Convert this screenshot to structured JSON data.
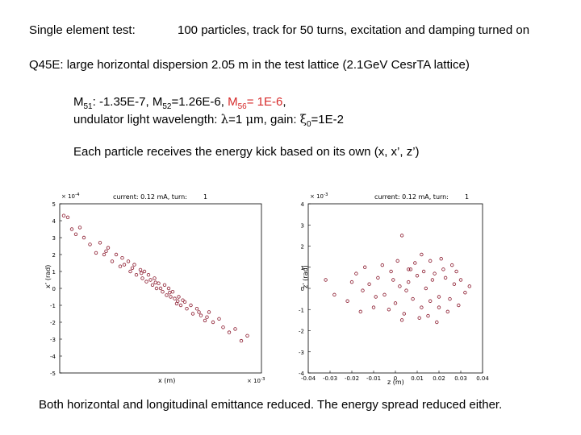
{
  "header": {
    "label": "Single element test:",
    "summary": "100 particles, track for 50 turns, excitation and damping turned on"
  },
  "lattice_line": "Q45E:  large horizontal dispersion 2.05 m in the test lattice (2.1GeV CesrTA lattice)",
  "matrix": {
    "m51_prefix": "M",
    "m51_sub": "51",
    "m51_value": ": -1.35E-7, ",
    "m52_prefix": "M",
    "m52_sub": "52",
    "m52_value": "=1.26E-6, ",
    "m56_prefix": "M",
    "m56_sub": "56",
    "m56_value": "= 1E-6",
    "trailing_comma": ","
  },
  "undulator_line": {
    "text_a": "undulator light wavelength: ",
    "lambda": "λ",
    "text_b": "=1 ",
    "mu": "μ",
    "text_c": "m,  gain: ",
    "xi": "ξ",
    "xi_sub": "0",
    "text_d": "=1E-2"
  },
  "kick_line": "Each particle receives the energy kick based on its own (x, x’, z’)",
  "conclusion": "Both horizontal and longitudinal emittance reduced. The energy spread reduced either.",
  "colors": {
    "accent_red": "#d62a2a",
    "marker": "#8b1a2e"
  },
  "chart_data": [
    {
      "type": "scatter",
      "title": "current: 0.12 mA, turn:",
      "turn": "1",
      "xlabel": "x (m)",
      "ylabel": "x’ (rad)",
      "x_multiplier": "× 10",
      "x_exponent": "-3",
      "y_multiplier": "× 10",
      "y_exponent": "-4",
      "xlim": [
        -5,
        5
      ],
      "ylim": [
        -5,
        5
      ],
      "yticks": [
        "5",
        "4",
        "3",
        "2",
        "1",
        "0",
        "-1",
        "-2",
        "-3",
        "-4",
        "-5"
      ],
      "xticks": [],
      "grid": false,
      "points": [
        {
          "x": -4.8,
          "y": 4.3
        },
        {
          "x": -4.6,
          "y": 4.2
        },
        {
          "x": -4.4,
          "y": 3.5
        },
        {
          "x": -4.2,
          "y": 3.2
        },
        {
          "x": -4.0,
          "y": 3.6
        },
        {
          "x": -3.5,
          "y": 2.6
        },
        {
          "x": -3.2,
          "y": 2.1
        },
        {
          "x": -3.0,
          "y": 2.7
        },
        {
          "x": -2.8,
          "y": 2.0
        },
        {
          "x": -2.6,
          "y": 2.4
        },
        {
          "x": -2.4,
          "y": 1.6
        },
        {
          "x": -2.2,
          "y": 2.0
        },
        {
          "x": -2.0,
          "y": 1.3
        },
        {
          "x": -1.9,
          "y": 1.8
        },
        {
          "x": -1.8,
          "y": 1.4
        },
        {
          "x": -1.6,
          "y": 1.6
        },
        {
          "x": -1.5,
          "y": 1.0
        },
        {
          "x": -1.3,
          "y": 1.4
        },
        {
          "x": -1.2,
          "y": 0.8
        },
        {
          "x": -1.0,
          "y": 1.1
        },
        {
          "x": -0.9,
          "y": 0.6
        },
        {
          "x": -0.8,
          "y": 1.0
        },
        {
          "x": -0.7,
          "y": 0.4
        },
        {
          "x": -0.6,
          "y": 0.8
        },
        {
          "x": -0.5,
          "y": 0.5
        },
        {
          "x": -0.4,
          "y": 0.2
        },
        {
          "x": -0.3,
          "y": 0.6
        },
        {
          "x": -0.2,
          "y": 0.0
        },
        {
          "x": -0.1,
          "y": 0.3
        },
        {
          "x": 0.0,
          "y": 0.0
        },
        {
          "x": 0.1,
          "y": -0.2
        },
        {
          "x": 0.2,
          "y": 0.2
        },
        {
          "x": 0.3,
          "y": -0.4
        },
        {
          "x": 0.4,
          "y": 0.0
        },
        {
          "x": 0.5,
          "y": -0.5
        },
        {
          "x": 0.6,
          "y": -0.2
        },
        {
          "x": 0.7,
          "y": -0.6
        },
        {
          "x": 0.8,
          "y": -0.9
        },
        {
          "x": 0.9,
          "y": -0.5
        },
        {
          "x": 1.0,
          "y": -1.0
        },
        {
          "x": 1.2,
          "y": -0.8
        },
        {
          "x": 1.3,
          "y": -1.2
        },
        {
          "x": 1.5,
          "y": -1.0
        },
        {
          "x": 1.6,
          "y": -1.5
        },
        {
          "x": 1.8,
          "y": -1.2
        },
        {
          "x": 2.0,
          "y": -1.6
        },
        {
          "x": 2.2,
          "y": -1.9
        },
        {
          "x": 2.4,
          "y": -1.4
        },
        {
          "x": 2.6,
          "y": -2.0
        },
        {
          "x": 2.9,
          "y": -1.8
        },
        {
          "x": 3.1,
          "y": -2.3
        },
        {
          "x": 3.4,
          "y": -2.6
        },
        {
          "x": 3.7,
          "y": -2.4
        },
        {
          "x": 4.0,
          "y": -3.1
        },
        {
          "x": 4.3,
          "y": -2.8
        },
        {
          "x": -1.4,
          "y": 1.2
        },
        {
          "x": -0.95,
          "y": 0.9
        },
        {
          "x": -0.25,
          "y": 0.35
        },
        {
          "x": 0.45,
          "y": -0.25
        },
        {
          "x": 1.1,
          "y": -0.7
        },
        {
          "x": -2.7,
          "y": 2.2
        },
        {
          "x": -3.8,
          "y": 3.0
        },
        {
          "x": 0.85,
          "y": -0.75
        },
        {
          "x": 1.9,
          "y": -1.4
        },
        {
          "x": 2.3,
          "y": -1.7
        }
      ]
    },
    {
      "type": "scatter",
      "title": "current: 0.12 mA, turn:",
      "turn": "1",
      "xlabel": "z (m)",
      "ylabel": "z’ (rad)",
      "y_multiplier": "× 10",
      "y_exponent": "-3",
      "xlim": [
        -0.04,
        0.04
      ],
      "ylim": [
        -4,
        4
      ],
      "yticks": [
        "4",
        "3",
        "2",
        "1",
        "0",
        "-1",
        "-2",
        "-3",
        "-4"
      ],
      "xticks": [
        "-0.04",
        "-0.03",
        "-0.02",
        "-0.01",
        "0",
        "0.01",
        "0.02",
        "0.03",
        "0.04"
      ],
      "grid": false,
      "points": [
        {
          "x": 0.003,
          "y": 2.5
        },
        {
          "x": 0.012,
          "y": 1.6
        },
        {
          "x": 0.021,
          "y": 1.4
        },
        {
          "x": 0.026,
          "y": 1.1
        },
        {
          "x": 0.006,
          "y": 0.9
        },
        {
          "x": 0.03,
          "y": 0.4
        },
        {
          "x": -0.028,
          "y": -0.3
        },
        {
          "x": -0.018,
          "y": 0.7
        },
        {
          "x": -0.015,
          "y": -0.1
        },
        {
          "x": -0.012,
          "y": 0.2
        },
        {
          "x": -0.01,
          "y": -0.9
        },
        {
          "x": -0.008,
          "y": 0.5
        },
        {
          "x": -0.005,
          "y": -0.3
        },
        {
          "x": -0.002,
          "y": 0.8
        },
        {
          "x": 0.0,
          "y": -0.7
        },
        {
          "x": 0.002,
          "y": 0.1
        },
        {
          "x": 0.004,
          "y": -1.2
        },
        {
          "x": 0.006,
          "y": 0.3
        },
        {
          "x": 0.008,
          "y": -0.5
        },
        {
          "x": 0.01,
          "y": 0.6
        },
        {
          "x": 0.012,
          "y": -0.9
        },
        {
          "x": 0.014,
          "y": 0.0
        },
        {
          "x": 0.016,
          "y": -0.6
        },
        {
          "x": 0.018,
          "y": 0.7
        },
        {
          "x": 0.02,
          "y": -0.4
        },
        {
          "x": 0.022,
          "y": 0.9
        },
        {
          "x": 0.024,
          "y": -1.1
        },
        {
          "x": 0.027,
          "y": 0.2
        },
        {
          "x": 0.029,
          "y": -0.8
        },
        {
          "x": 0.032,
          "y": -0.2
        },
        {
          "x": -0.022,
          "y": -0.6
        },
        {
          "x": -0.02,
          "y": 0.3
        },
        {
          "x": -0.014,
          "y": 1.0
        },
        {
          "x": -0.006,
          "y": 1.1
        },
        {
          "x": -0.003,
          "y": -1.0
        },
        {
          "x": 0.001,
          "y": 1.3
        },
        {
          "x": 0.005,
          "y": -0.1
        },
        {
          "x": 0.009,
          "y": 1.2
        },
        {
          "x": 0.011,
          "y": -1.4
        },
        {
          "x": 0.013,
          "y": 0.8
        },
        {
          "x": 0.015,
          "y": -1.3
        },
        {
          "x": 0.017,
          "y": 0.4
        },
        {
          "x": 0.019,
          "y": -1.6
        },
        {
          "x": 0.023,
          "y": 0.5
        },
        {
          "x": 0.025,
          "y": -0.5
        },
        {
          "x": 0.034,
          "y": 0.1
        },
        {
          "x": -0.032,
          "y": 0.4
        },
        {
          "x": -0.016,
          "y": -1.1
        },
        {
          "x": -0.009,
          "y": -0.4
        },
        {
          "x": -0.001,
          "y": 0.4
        },
        {
          "x": 0.003,
          "y": -1.5
        },
        {
          "x": 0.007,
          "y": 0.9
        },
        {
          "x": 0.016,
          "y": 1.3
        },
        {
          "x": 0.02,
          "y": -0.9
        },
        {
          "x": 0.028,
          "y": 0.8
        }
      ]
    }
  ]
}
